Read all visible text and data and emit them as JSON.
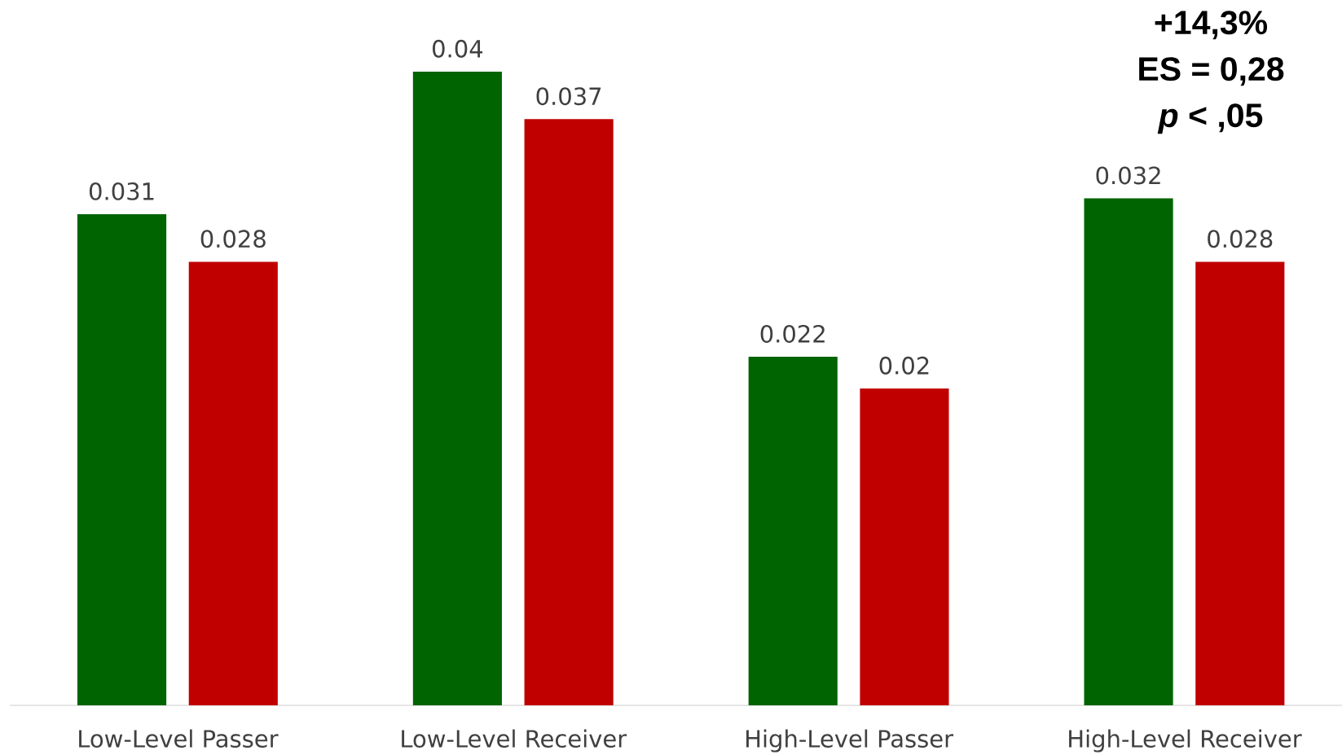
{
  "chart_data": {
    "type": "bar",
    "categories": [
      "Low-Level Passer",
      "Low-Level Receiver",
      "High-Level Passer",
      "High-Level Receiver"
    ],
    "series": [
      {
        "color": "#006400",
        "values": [
          0.031,
          0.04,
          0.022,
          0.032
        ]
      },
      {
        "color": "#c00000",
        "values": [
          0.028,
          0.037,
          0.02,
          0.028
        ]
      }
    ],
    "data_labels": true,
    "annotations": [
      "+14,3%",
      "ES = 0,28",
      "*p* < ,05"
    ]
  }
}
